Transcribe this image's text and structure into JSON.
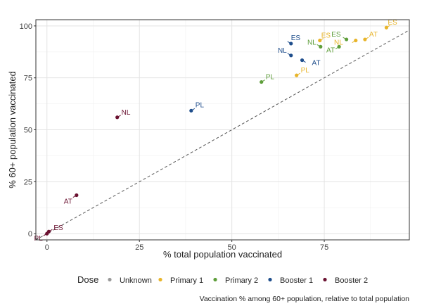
{
  "chart_data": {
    "type": "scatter",
    "xlabel": "% total population vaccinated",
    "ylabel": "% 60+ population vaccinated",
    "caption": "Vaccination % among 60+ population, relative to total population",
    "xlim": [
      -3,
      98
    ],
    "ylim": [
      -3,
      103
    ],
    "x_ticks": [
      0,
      25,
      50,
      75
    ],
    "y_ticks": [
      0,
      25,
      50,
      75,
      100
    ],
    "grid": true,
    "reference_line": {
      "style": "dashed",
      "slope": 1,
      "intercept": 0
    },
    "legend": {
      "title": "Dose",
      "position": "bottom",
      "items": [
        {
          "label": "Unknown",
          "color": "#999999"
        },
        {
          "label": "Primary 1",
          "color": "#E8B52B"
        },
        {
          "label": "Primary 2",
          "color": "#5E9E3A"
        },
        {
          "label": "Booster 1",
          "color": "#1F4E8C"
        },
        {
          "label": "Booster 2",
          "color": "#6B1231"
        }
      ]
    },
    "series": [
      {
        "name": "Primary 1",
        "color": "#E8B52B",
        "points": [
          {
            "label": "ES",
            "x": 73.8,
            "y": 93.0
          },
          {
            "label": "ES",
            "x": 91.8,
            "y": 99.2
          },
          {
            "label": "AT",
            "x": 86.0,
            "y": 93.5
          },
          {
            "label": "NL",
            "x": 83.5,
            "y": 93.0
          },
          {
            "label": "PL",
            "x": 67.5,
            "y": 76.2
          }
        ]
      },
      {
        "name": "Primary 2",
        "color": "#5E9E3A",
        "points": [
          {
            "label": "ES",
            "x": 81.0,
            "y": 93.5
          },
          {
            "label": "NL",
            "x": 74.0,
            "y": 90.0
          },
          {
            "label": "AT",
            "x": 79.0,
            "y": 90.0
          },
          {
            "label": "PL",
            "x": 58.0,
            "y": 73.0
          }
        ]
      },
      {
        "name": "Booster 1",
        "color": "#1F4E8C",
        "points": [
          {
            "label": "ES",
            "x": 66.0,
            "y": 91.5
          },
          {
            "label": "NL",
            "x": 66.0,
            "y": 85.8
          },
          {
            "label": "AT",
            "x": 69.0,
            "y": 83.5
          },
          {
            "label": "PL",
            "x": 39.0,
            "y": 59.2
          }
        ]
      },
      {
        "name": "Booster 2",
        "color": "#6B1231",
        "points": [
          {
            "label": "NL",
            "x": 19.0,
            "y": 56.0
          },
          {
            "label": "AT",
            "x": 8.0,
            "y": 18.5
          },
          {
            "label": "ES",
            "x": 0.5,
            "y": 1.0
          },
          {
            "label": "PL",
            "x": 0.0,
            "y": 0.0
          }
        ]
      }
    ]
  }
}
